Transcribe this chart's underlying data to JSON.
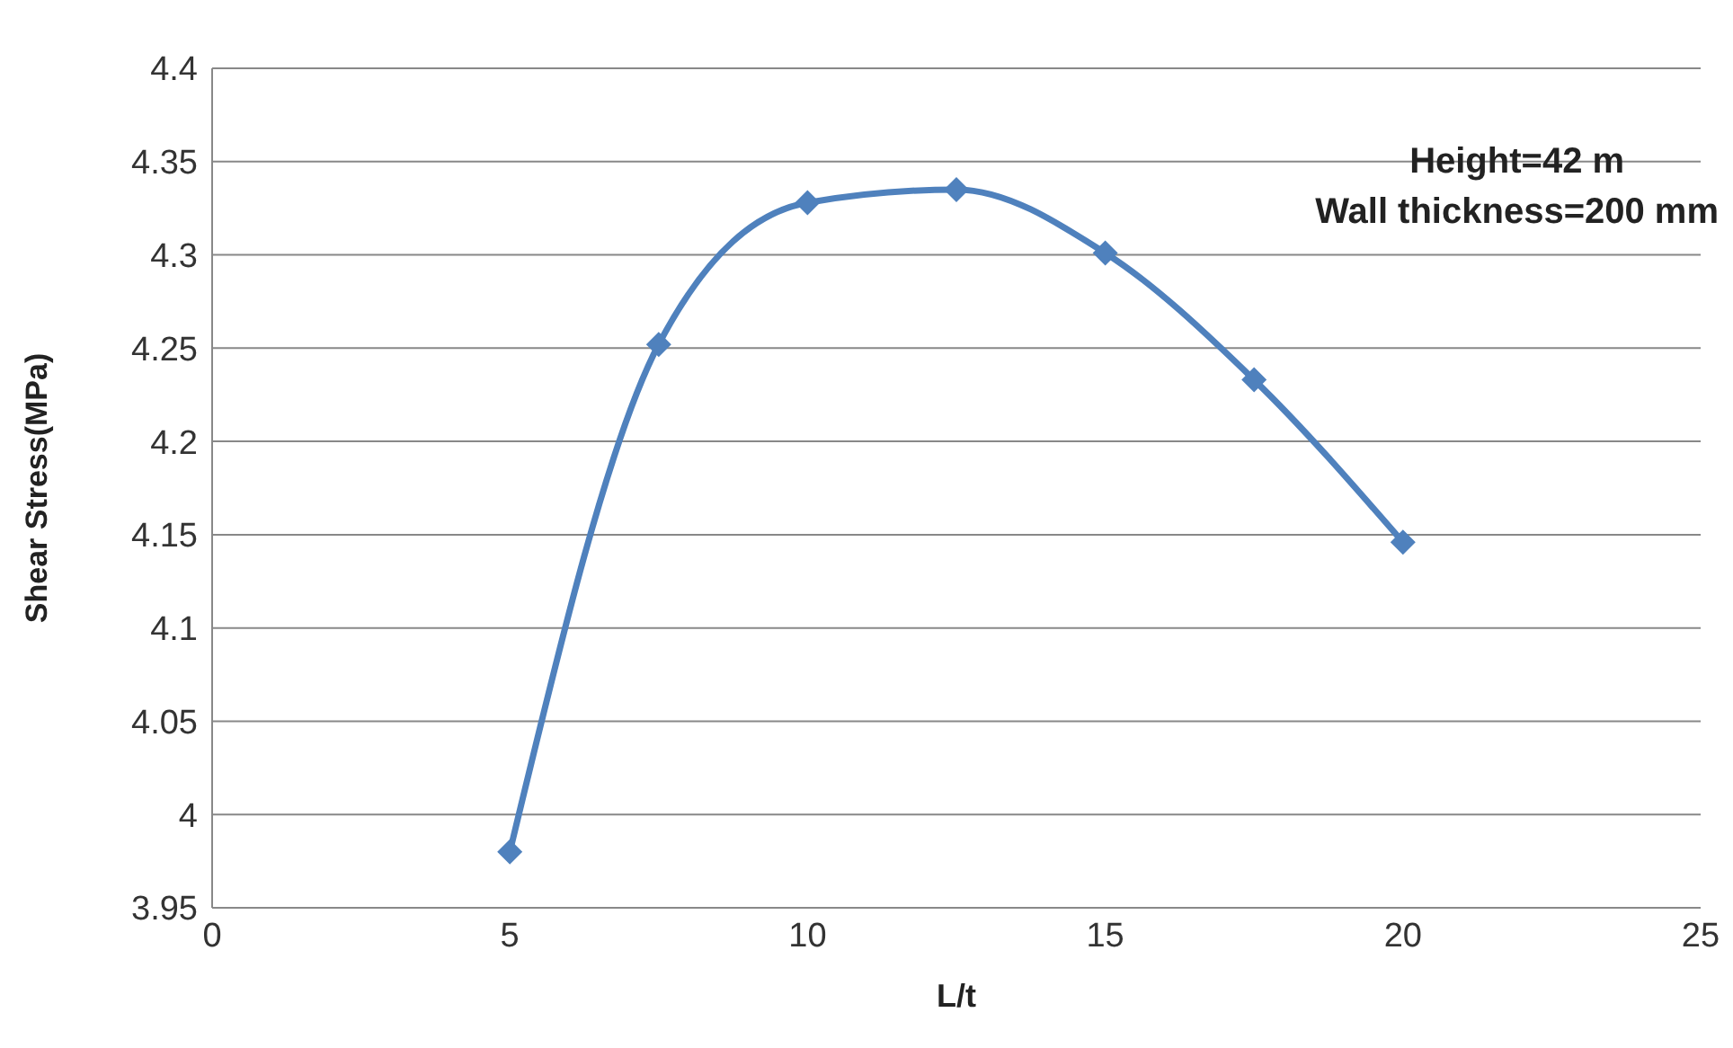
{
  "chart_data": {
    "type": "line",
    "xlabel": "L/t",
    "ylabel": "Shear  Stress(MPa)",
    "annotations": [
      "Height=42 m",
      "Wall thickness=200 mm"
    ],
    "x": [
      5,
      7.5,
      10,
      12.5,
      15,
      17.5,
      20
    ],
    "series": [
      {
        "color": "#4f81bd",
        "values": [
          3.98,
          4.252,
          4.328,
          4.335,
          4.301,
          4.233,
          4.146
        ]
      }
    ],
    "xlim": [
      0,
      25
    ],
    "xticks": [
      0,
      5,
      10,
      15,
      20,
      25
    ],
    "ylim": [
      3.95,
      4.4
    ],
    "yticks": [
      3.95,
      4,
      4.05,
      4.1,
      4.15,
      4.2,
      4.25,
      4.3,
      4.35,
      4.4
    ],
    "grid": "y",
    "marker": "diamond",
    "line_style": "solid",
    "legend": false
  }
}
